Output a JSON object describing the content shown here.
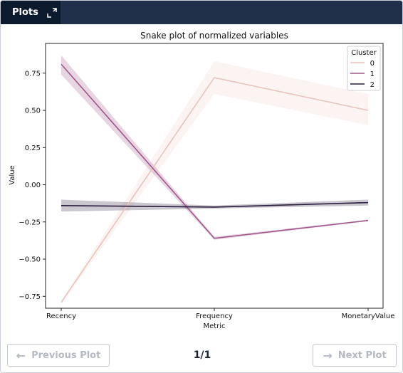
{
  "header": {
    "tab_label": "Plots",
    "expand_icon": "expand-icon"
  },
  "footer": {
    "prev_label": "Previous Plot",
    "next_label": "Next Plot",
    "prev_icon": "arrow-left-icon",
    "next_icon": "arrow-right-icon",
    "page_indicator": "1/1"
  },
  "chart_data": {
    "type": "line",
    "title": "Snake plot of normalized variables",
    "xlabel": "Metric",
    "ylabel": "Value",
    "categories": [
      "Recency",
      "Frequency",
      "MonetaryValue"
    ],
    "ylim": [
      -0.83,
      0.95
    ],
    "yticks": [
      -0.75,
      -0.5,
      -0.25,
      0.0,
      0.25,
      0.5,
      0.75
    ],
    "ytick_labels": [
      "−0.75",
      "−0.50",
      "−0.25",
      "0.00",
      "0.25",
      "0.50",
      "0.75"
    ],
    "grid": false,
    "legend": {
      "title": "Cluster",
      "placement": "top-right"
    },
    "series": [
      {
        "name": "0",
        "color": "#e8c4be",
        "values": [
          -0.79,
          0.72,
          0.5
        ],
        "ci_low": [
          -0.8,
          0.61,
          0.4
        ],
        "ci_high": [
          -0.78,
          0.83,
          0.61
        ]
      },
      {
        "name": "1",
        "color": "#a0588a",
        "values": [
          0.81,
          -0.36,
          -0.24
        ],
        "ci_low": [
          0.74,
          -0.37,
          -0.245
        ],
        "ci_high": [
          0.87,
          -0.35,
          -0.235
        ]
      },
      {
        "name": "2",
        "color": "#2c1e3e",
        "values": [
          -0.14,
          -0.15,
          -0.12
        ],
        "ci_low": [
          -0.18,
          -0.16,
          -0.14
        ],
        "ci_high": [
          -0.1,
          -0.14,
          -0.1
        ]
      }
    ]
  }
}
